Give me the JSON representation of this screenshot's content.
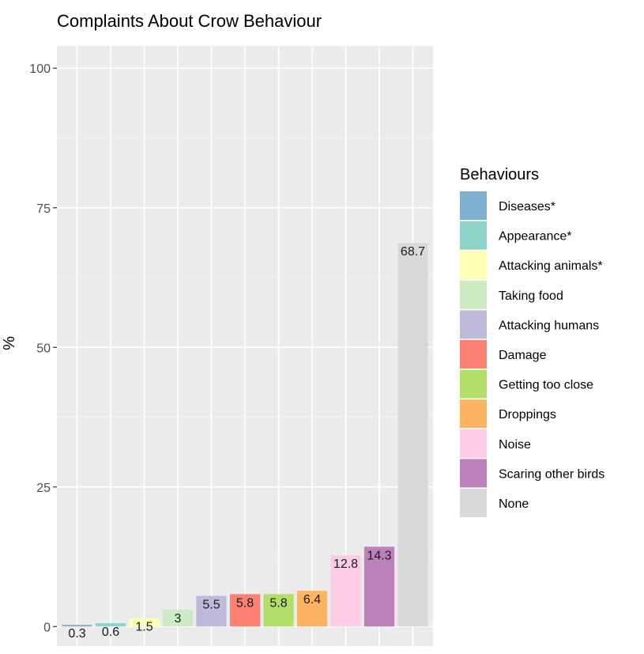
{
  "chart_data": {
    "type": "bar",
    "title": "Complaints About Crow Behaviour",
    "xlabel": "",
    "ylabel": "%",
    "ylim": [
      -3.5,
      104
    ],
    "yticks": [
      0,
      25,
      50,
      75,
      100
    ],
    "grid": true,
    "legend_position": "right",
    "legend_title": "Behaviours",
    "categories": [
      "Diseases*",
      "Appearance*",
      "Attacking animals*",
      "Taking food",
      "Attacking humans",
      "Damage",
      "Getting too close",
      "Droppings",
      "Noise",
      "Scaring other birds",
      "None"
    ],
    "values": [
      0.3,
      0.6,
      1.5,
      3,
      5.5,
      5.8,
      5.8,
      6.4,
      12.8,
      14.3,
      68.7
    ],
    "value_labels": [
      "0.3",
      "0.6",
      "1.5",
      "3",
      "5.5",
      "5.8",
      "5.8",
      "6.4",
      "12.8",
      "14.3",
      "68.7"
    ],
    "colors": [
      "#80b1d3",
      "#8dd3c7",
      "#ffffb3",
      "#ccebc5",
      "#bebada",
      "#fb8072",
      "#b3de69",
      "#fdb462",
      "#fccde5",
      "#bc80bd",
      "#d9d9d9"
    ]
  }
}
